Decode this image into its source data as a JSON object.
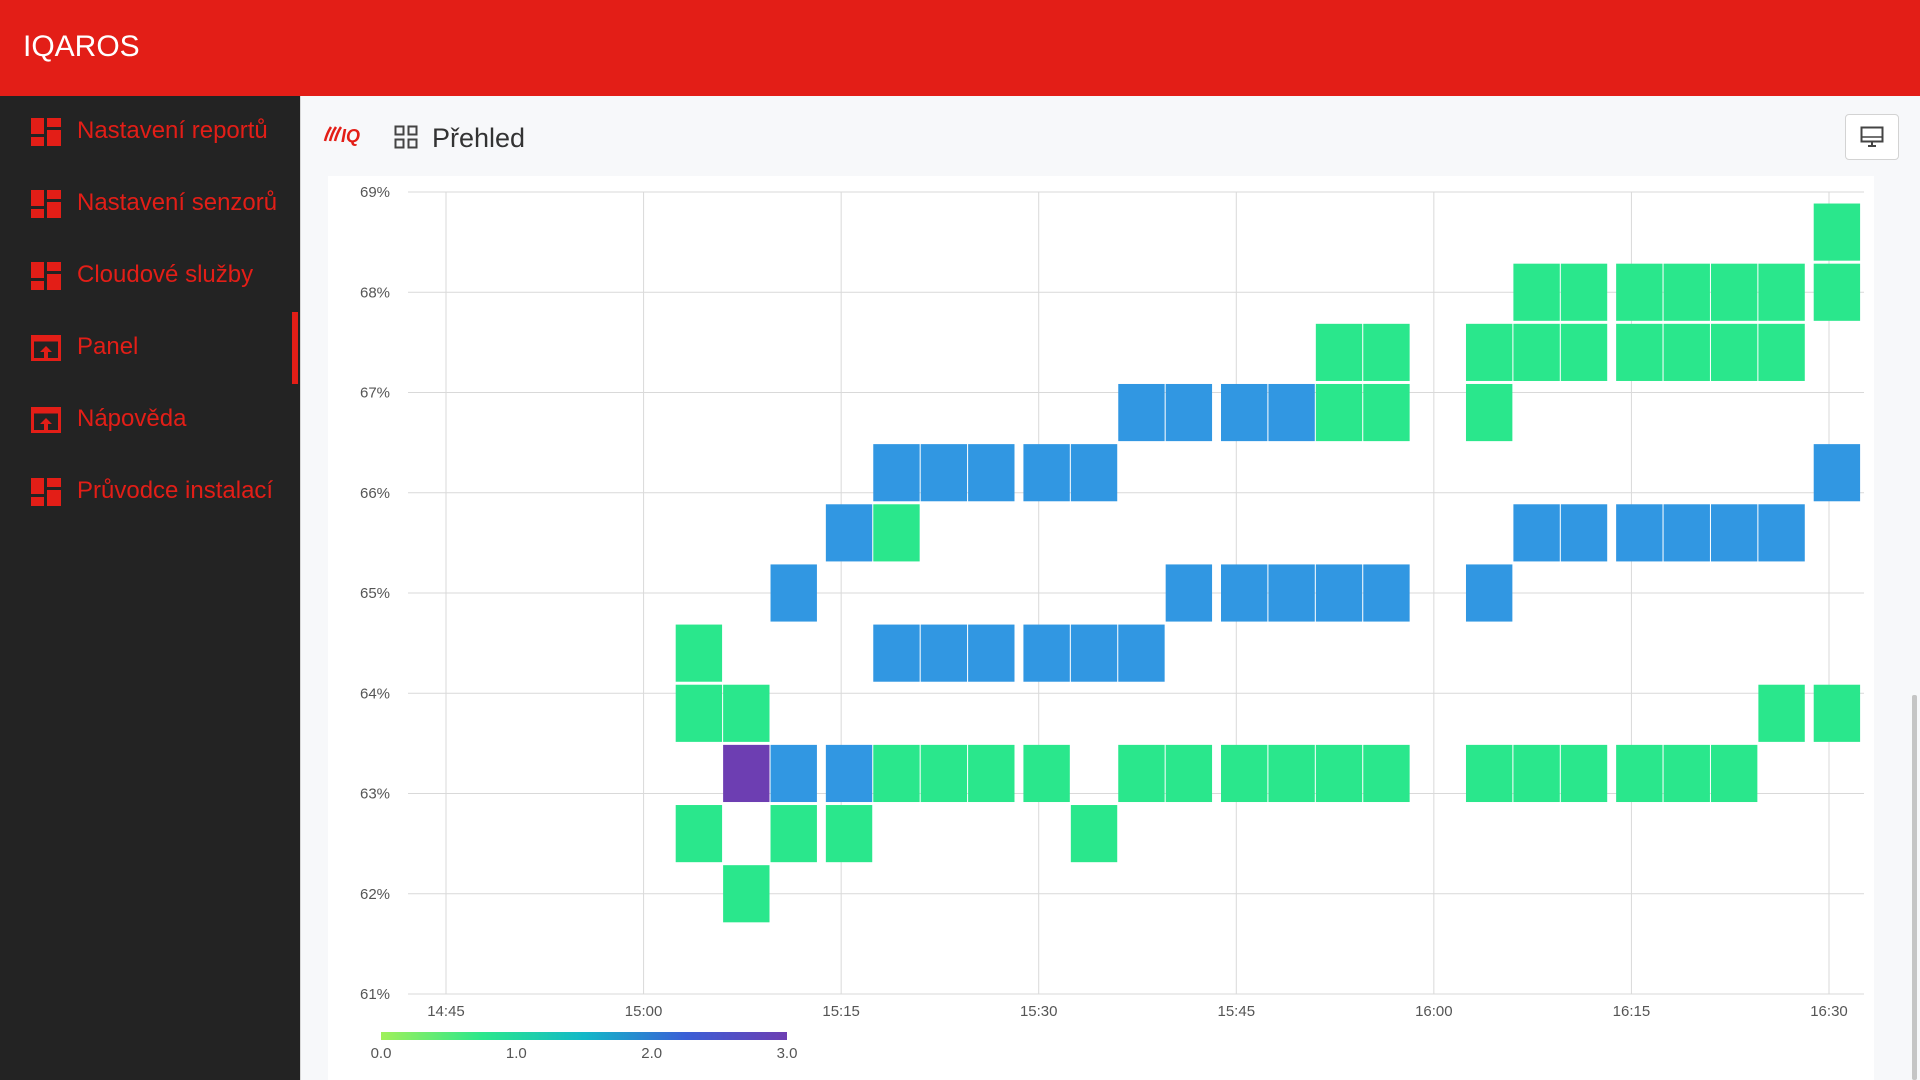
{
  "app": {
    "title": "IQAROS"
  },
  "sidebar": {
    "items": [
      {
        "label": "Nastavení reportů",
        "icon": "dashboard-grid-icon"
      },
      {
        "label": "Nastavení senzorů",
        "icon": "dashboard-grid-icon"
      },
      {
        "label": "Cloudové služby",
        "icon": "dashboard-grid-icon"
      },
      {
        "label": "Panel",
        "icon": "open-in-browser-icon",
        "active": true
      },
      {
        "label": "Nápověda",
        "icon": "open-in-browser-icon"
      },
      {
        "label": "Průvodce instalací",
        "icon": "dashboard-grid-icon"
      }
    ]
  },
  "header": {
    "brand": "IQ",
    "title": "Přehled",
    "title_icon": "grid-view-icon",
    "right_button_icon": "monitor-icon"
  },
  "colors": {
    "accent": "#e31e17",
    "sidebar_bg": "#232323",
    "cell_green": "#2ae78c",
    "cell_blue": "#3197e2",
    "cell_purple": "#6d3eb2"
  },
  "chart_data": {
    "type": "heatmap",
    "title": "",
    "xlabel": "",
    "ylabel": "",
    "x_ticks": [
      "14:45",
      "15:00",
      "15:15",
      "15:30",
      "15:45",
      "16:00",
      "16:15",
      "16:30"
    ],
    "y_ticks": [
      "61%",
      "62%",
      "63%",
      "64%",
      "65%",
      "66%",
      "67%",
      "68%",
      "69%"
    ],
    "ylim": [
      61,
      69
    ],
    "xlim": [
      "14:45",
      "16:30"
    ],
    "grid": true,
    "colorscale": {
      "min": 0,
      "max": 3,
      "ticks": [
        "0.0",
        "1.0",
        "2.0",
        "3.0"
      ],
      "stops": [
        "#a0f05a",
        "#2ae78c",
        "#12b8c8",
        "#3a5fd6",
        "#6d3eb2"
      ]
    },
    "bin_minutes": 3.75,
    "bin_height_pct": 0.6,
    "cells": [
      [
        15.07,
        62.6,
        0.9
      ],
      [
        15.07,
        63.8,
        0.9
      ],
      [
        15.07,
        64.4,
        0.9
      ],
      [
        15.13,
        62.0,
        0.9
      ],
      [
        15.13,
        63.2,
        3.0
      ],
      [
        15.13,
        63.8,
        0.9
      ],
      [
        15.19,
        62.6,
        0.9
      ],
      [
        15.19,
        63.2,
        2.0
      ],
      [
        15.19,
        65.0,
        2.0
      ],
      [
        15.26,
        62.6,
        0.9
      ],
      [
        15.26,
        63.2,
        2.0
      ],
      [
        15.26,
        65.6,
        2.0
      ],
      [
        15.32,
        63.2,
        0.9
      ],
      [
        15.32,
        64.4,
        2.0
      ],
      [
        15.32,
        65.6,
        0.9
      ],
      [
        15.32,
        66.2,
        2.0
      ],
      [
        15.38,
        63.2,
        0.9
      ],
      [
        15.38,
        64.4,
        2.0
      ],
      [
        15.38,
        66.2,
        2.0
      ],
      [
        15.44,
        63.2,
        0.9
      ],
      [
        15.44,
        64.4,
        2.0
      ],
      [
        15.44,
        66.2,
        2.0
      ],
      [
        15.51,
        63.2,
        0.9
      ],
      [
        15.51,
        64.4,
        2.0
      ],
      [
        15.51,
        66.2,
        2.0
      ],
      [
        15.57,
        62.6,
        0.9
      ],
      [
        15.57,
        64.4,
        2.0
      ],
      [
        15.57,
        66.2,
        2.0
      ],
      [
        15.63,
        63.2,
        0.9
      ],
      [
        15.63,
        64.4,
        2.0
      ],
      [
        15.63,
        66.8,
        2.0
      ],
      [
        15.69,
        63.2,
        0.9
      ],
      [
        15.69,
        65.0,
        2.0
      ],
      [
        15.69,
        66.8,
        2.0
      ],
      [
        15.76,
        63.2,
        0.9
      ],
      [
        15.76,
        65.0,
        2.0
      ],
      [
        15.76,
        66.8,
        2.0
      ],
      [
        15.82,
        63.2,
        0.9
      ],
      [
        15.82,
        65.0,
        2.0
      ],
      [
        15.82,
        66.8,
        2.0
      ],
      [
        15.88,
        63.2,
        0.9
      ],
      [
        15.88,
        65.0,
        2.0
      ],
      [
        15.88,
        66.8,
        0.9
      ],
      [
        15.88,
        67.4,
        0.9
      ],
      [
        15.94,
        63.2,
        0.9
      ],
      [
        15.94,
        65.0,
        2.0
      ],
      [
        15.94,
        66.8,
        0.9
      ],
      [
        15.94,
        67.4,
        0.9
      ],
      [
        16.07,
        63.2,
        0.9
      ],
      [
        16.07,
        65.0,
        2.0
      ],
      [
        16.07,
        66.8,
        0.9
      ],
      [
        16.07,
        67.4,
        0.9
      ],
      [
        16.13,
        63.2,
        0.9
      ],
      [
        16.13,
        65.6,
        2.0
      ],
      [
        16.13,
        67.4,
        0.9
      ],
      [
        16.13,
        68.0,
        0.9
      ],
      [
        16.19,
        63.2,
        0.9
      ],
      [
        16.19,
        65.6,
        2.0
      ],
      [
        16.19,
        67.4,
        0.9
      ],
      [
        16.19,
        68.0,
        0.9
      ],
      [
        16.26,
        63.2,
        0.9
      ],
      [
        16.26,
        65.6,
        2.0
      ],
      [
        16.26,
        67.4,
        0.9
      ],
      [
        16.26,
        68.0,
        0.9
      ],
      [
        16.32,
        63.2,
        0.9
      ],
      [
        16.32,
        65.6,
        2.0
      ],
      [
        16.32,
        67.4,
        0.9
      ],
      [
        16.32,
        68.0,
        0.9
      ],
      [
        16.38,
        63.2,
        0.9
      ],
      [
        16.38,
        65.6,
        2.0
      ],
      [
        16.38,
        67.4,
        0.9
      ],
      [
        16.38,
        68.0,
        0.9
      ],
      [
        16.44,
        63.8,
        0.9
      ],
      [
        16.44,
        65.6,
        2.0
      ],
      [
        16.44,
        67.4,
        0.9
      ],
      [
        16.44,
        68.0,
        0.9
      ],
      [
        16.51,
        63.8,
        0.9
      ],
      [
        16.51,
        66.2,
        2.0
      ],
      [
        16.51,
        68.0,
        0.9
      ],
      [
        16.51,
        68.6,
        0.9
      ]
    ]
  }
}
